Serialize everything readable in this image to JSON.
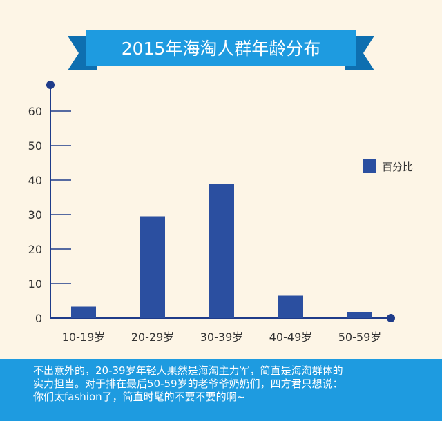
{
  "chart_data": {
    "type": "bar",
    "title": "2015年海淘人群年龄分布",
    "categories": [
      "10-19岁",
      "20-29岁",
      "30-39岁",
      "40-49岁",
      "50-59岁"
    ],
    "series": [
      {
        "name": "百分比",
        "values": [
          3.3,
          29.5,
          38.8,
          6.5,
          1.8
        ]
      }
    ],
    "ylim": [
      0,
      60
    ],
    "yticks": [
      0,
      10,
      20,
      30,
      40,
      50,
      60
    ],
    "legend": "right",
    "grid": false,
    "colors": {
      "bar": "#2b4fa0",
      "axis": "#1f3c8a",
      "ribbon": "#1e9be0",
      "ribbon_dark": "#0e6fb0"
    }
  },
  "caption": {
    "lines": [
      "不出意外的，20-39岁年轻人果然是海淘主力军，简直是海淘群体的",
      "实力担当。对于排在最后50-59岁的老爷爷奶奶们，四方君只想说：",
      "你们太fashion了，简直时髦的不要不要的啊~"
    ]
  }
}
